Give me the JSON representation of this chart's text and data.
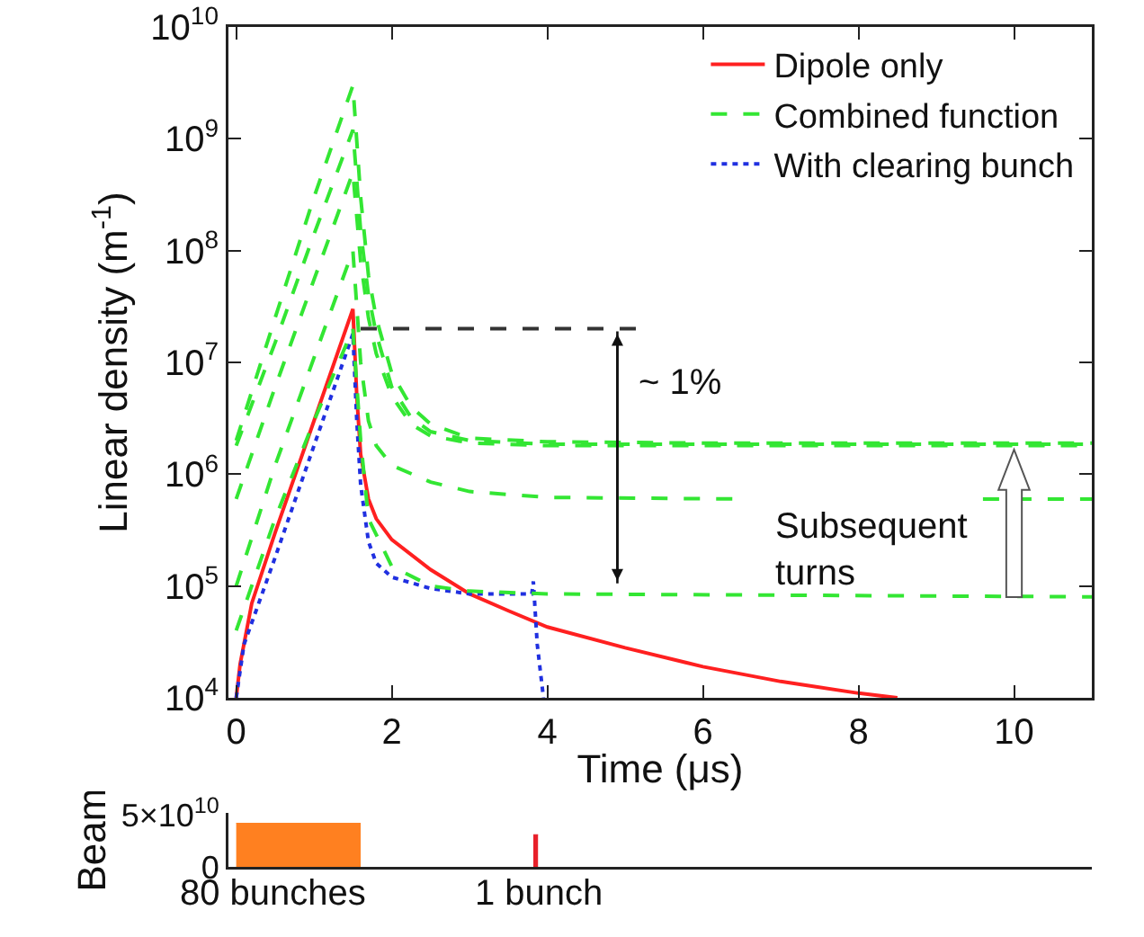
{
  "chart_data": [
    {
      "type": "line",
      "xlabel": "Time (μs)",
      "ylabel": "Linear density (m$^{-1}$)",
      "xlim": [
        -0.1,
        11
      ],
      "ylim": [
        10000,
        10000000000
      ],
      "log": "y",
      "grid": false,
      "legend": "top right",
      "xticks": [
        0,
        2,
        4,
        6,
        8,
        10
      ],
      "yticks": [
        {
          "value": 10000,
          "label": "10$^{4}$"
        },
        {
          "value": 100000,
          "label": "10$^{5}$"
        },
        {
          "value": 1000000,
          "label": "10$^{6}$"
        },
        {
          "value": 10000000,
          "label": "10$^{7}$"
        },
        {
          "value": 100000000,
          "label": "10$^{8}$"
        },
        {
          "value": 1000000000,
          "label": "10$^{9}$"
        },
        {
          "value": 10000000000,
          "label": "10$^{10}$"
        }
      ],
      "series": [
        {
          "name": "Dipole only",
          "color": "#ff2020",
          "line_style": "solid",
          "x": [
            0,
            0.05,
            0.2,
            0.5,
            1,
            1.5,
            1.55,
            1.6,
            1.7,
            1.8,
            2,
            2.5,
            3,
            3.5,
            4,
            5,
            6,
            7,
            8,
            8.5
          ],
          "values": [
            10000,
            20000,
            70000,
            300000,
            3000000,
            30000000,
            5000000,
            1500000,
            600000,
            400000,
            260000,
            140000,
            85000,
            60000,
            43000,
            28000,
            19000,
            14000,
            11000,
            10000
          ]
        },
        {
          "name": "Combined function",
          "color": "#33e633",
          "line_style": "dashed",
          "x": [
            0,
            0.5,
            1,
            1.5,
            1.6,
            1.7,
            1.8,
            2,
            2.25,
            2.5,
            3,
            4,
            6,
            11
          ],
          "values": [
            2000000,
            25000000,
            300000000,
            3000000000,
            300000000,
            60000000,
            25000000,
            8000000,
            4000000,
            2800000,
            2100000,
            1950000,
            1900000,
            1900000
          ]
        },
        {
          "name": "With clearing bunch",
          "color": "#2030e0",
          "line_style": "dotted",
          "x": [
            0,
            0.1,
            0.5,
            1,
            1.5,
            1.55,
            1.6,
            1.7,
            1.8,
            2,
            2.5,
            3,
            3.8,
            3.82,
            3.87,
            3.95
          ],
          "values": [
            10000,
            30000,
            180000,
            1800000,
            18000000,
            3000000,
            800000,
            250000,
            160000,
            120000,
            95000,
            85000,
            85000,
            110000,
            30000,
            10000
          ]
        },
        {
          "color": "#33e633",
          "line_style": "dashed",
          "x": [
            0,
            0.5,
            1,
            1.5,
            1.6,
            1.7,
            1.8,
            2,
            2.25,
            2.5,
            3,
            4,
            11
          ],
          "values": [
            1800000,
            15000000,
            140000000,
            1200000000,
            150000000,
            40000000,
            18000000,
            6000000,
            3200000,
            2400000,
            2000000,
            1850000,
            1850000
          ]
        },
        {
          "color": "#33e633",
          "line_style": "dashed",
          "x": [
            0,
            0.5,
            1,
            1.5,
            1.6,
            1.7,
            1.8,
            2,
            2.25,
            2.5,
            3,
            4,
            11
          ],
          "values": [
            600000,
            6000000,
            55000000,
            500000000,
            80000000,
            25000000,
            12000000,
            5000000,
            2800000,
            2200000,
            1900000,
            1800000,
            1800000
          ]
        },
        {
          "color": "#33e633",
          "line_style": "dashed",
          "x": [
            0,
            0.5,
            1,
            1.5,
            1.6,
            1.7,
            1.8,
            2,
            2.5,
            3,
            4,
            6.5,
            6.55,
            9.6,
            11
          ],
          "values": [
            100000,
            1200000,
            11000000,
            100000000,
            10000000,
            3000000,
            1800000,
            1200000,
            850000,
            700000,
            620000,
            600000,
            null,
            600000,
            600000
          ]
        },
        {
          "color": "#33e633",
          "line_style": "dashed",
          "x": [
            0,
            0.5,
            1,
            1.5,
            1.6,
            1.7,
            2,
            2.5,
            3,
            4,
            11
          ],
          "values": [
            40000,
            400000,
            3000000,
            20000000,
            2000000,
            400000,
            150000,
            100000,
            90000,
            85000,
            80000
          ]
        },
        {
          "color": "#333333",
          "line_style": "dashed",
          "x": [
            1.6,
            5.2
          ],
          "values": [
            20000000,
            20000000
          ]
        }
      ],
      "annotations": [
        "~ 1%",
        "Subsequent\nturns"
      ]
    },
    {
      "type": "area",
      "ylabel": "Beam",
      "xlim": [
        -0.1,
        11
      ],
      "ylim": [
        0,
        52000000000
      ],
      "yticks": [
        0,
        {
          "value": 50000000000,
          "label": "5×10$^{10}$"
        }
      ],
      "tick_labels": "y",
      "grid": false,
      "series": [
        {
          "color": "#ff8020",
          "x": [
            0,
            1.6
          ],
          "values": [
            42000000000,
            42000000000
          ]
        },
        {
          "color": "#e8202a",
          "x": [
            3.82,
            3.88
          ],
          "values": [
            31000000000,
            31000000000
          ]
        }
      ],
      "annotations": [
        "80 bunches",
        "1 bunch"
      ]
    }
  ]
}
